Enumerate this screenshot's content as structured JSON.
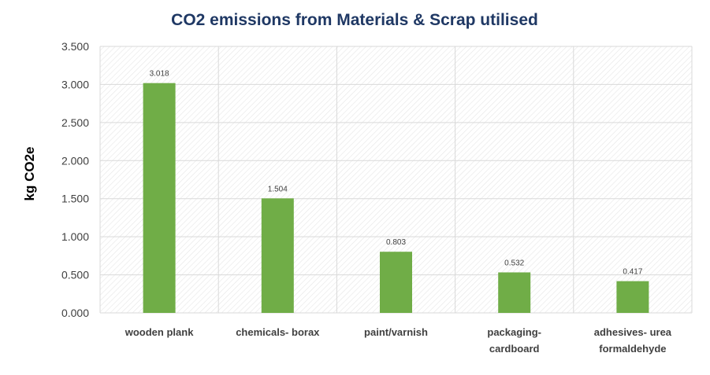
{
  "chart_data": {
    "type": "bar",
    "title": "CO2 emissions from Materials & Scrap utilised",
    "xlabel": "",
    "ylabel": "kg CO2e",
    "categories": [
      [
        "wooden plank"
      ],
      [
        "chemicals- borax"
      ],
      [
        "paint/varnish"
      ],
      [
        "packaging-",
        "cardboard"
      ],
      [
        "adhesives- urea",
        "formaldehyde"
      ]
    ],
    "values": [
      3.018,
      1.504,
      0.803,
      0.532,
      0.417
    ],
    "data_labels": [
      "3.018",
      "1.504",
      "0.803",
      "0.532",
      "0.417"
    ],
    "ylim": [
      0,
      3.5
    ],
    "yticks": [
      0,
      0.5,
      1.0,
      1.5,
      2.0,
      2.5,
      3.0,
      3.5
    ],
    "ytick_labels": [
      "0.000",
      "0.500",
      "1.000",
      "1.500",
      "2.000",
      "2.500",
      "3.000",
      "3.500"
    ],
    "grid": true,
    "legend": "none",
    "colors": {
      "bar": "#70ad47",
      "title": "#1f3864",
      "grid": "#d9d9d9",
      "hatch": "#ebebeb"
    }
  }
}
